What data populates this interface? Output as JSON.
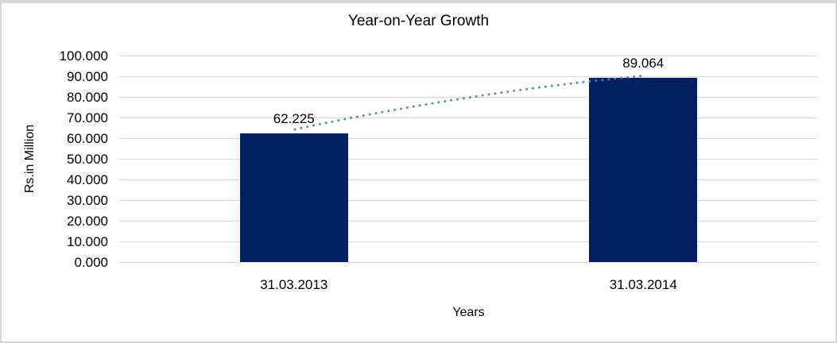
{
  "chart_data": {
    "type": "bar",
    "title": "Year-on-Year Growth",
    "categories": [
      "31.03.2013",
      "31.03.2014"
    ],
    "values": [
      62.225,
      89.064
    ],
    "data_labels": [
      "62.225",
      "89.064"
    ],
    "xlabel": "Years",
    "ylabel": "Rs.in Million",
    "ylim": [
      0,
      100
    ],
    "ytick_step": 10,
    "ytick_labels": [
      "100.000",
      "90.000",
      "80.000",
      "70.000",
      "60.000",
      "50.000",
      "40.000",
      "30.000",
      "20.000",
      "10.000",
      "0.000"
    ],
    "grid": true,
    "legend": false,
    "trendline": true,
    "colors": {
      "bar": "#002060",
      "trendline": "#4f81bd",
      "gridline": "#d9d9d9",
      "text": "#000000",
      "frame_border": "#d6d6d6",
      "background": "#ffffff"
    }
  }
}
